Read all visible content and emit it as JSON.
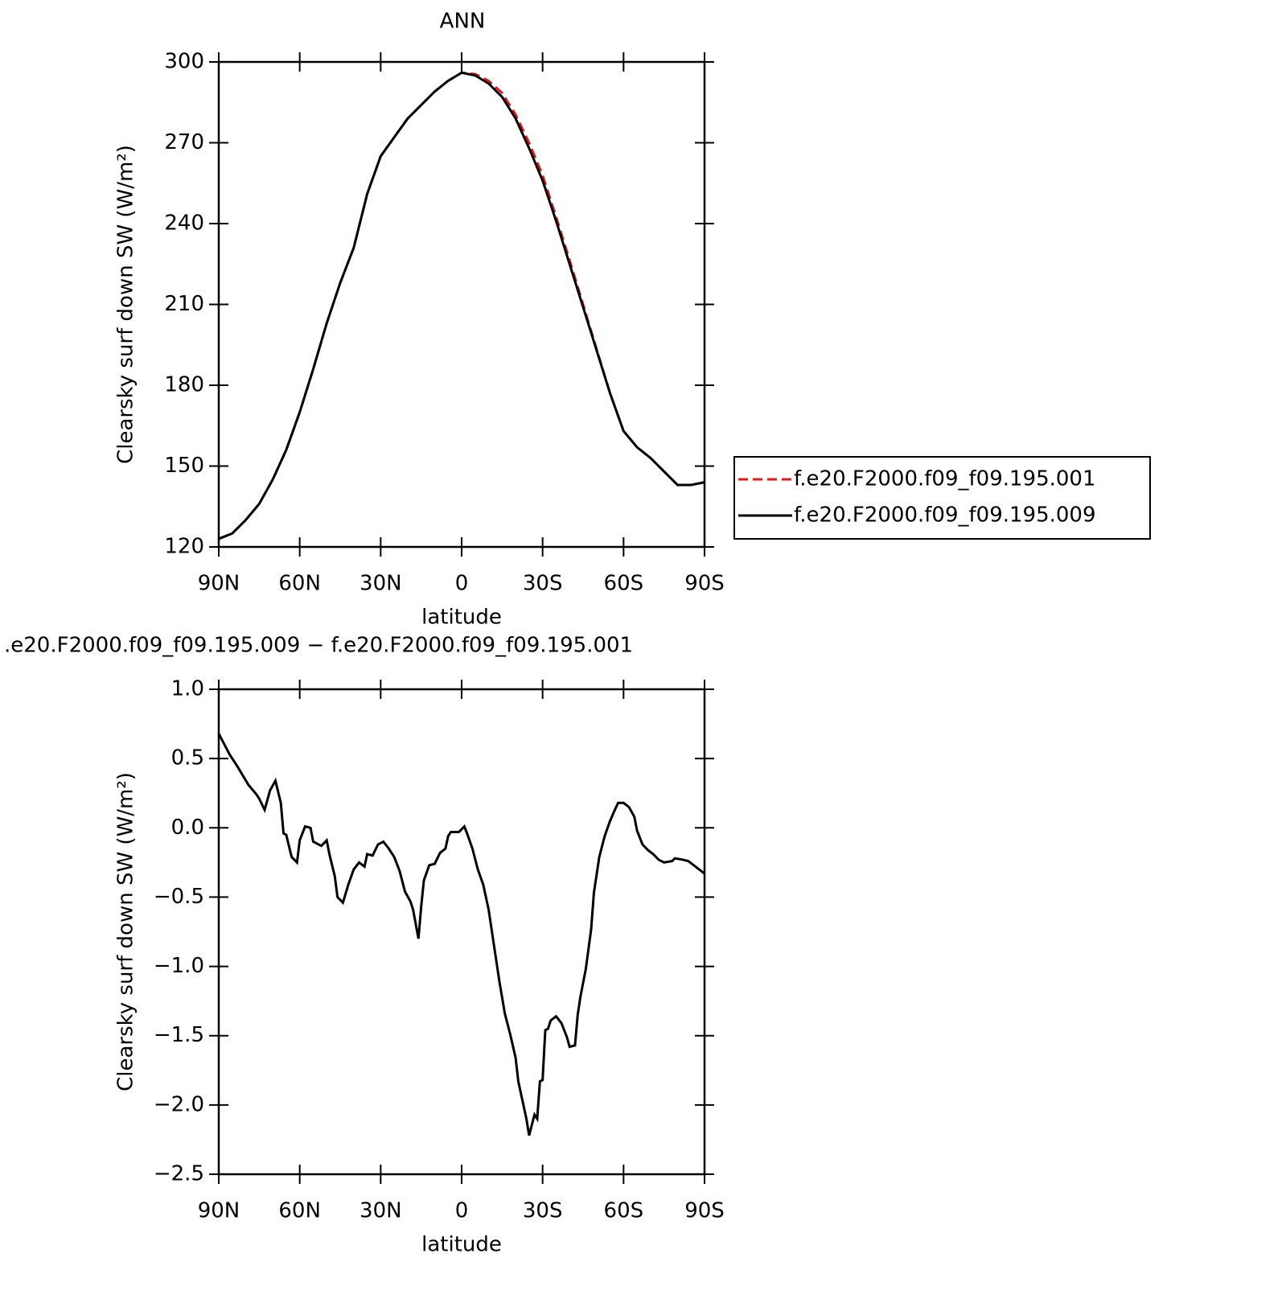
{
  "chart_data": [
    {
      "type": "line",
      "title": "ANN",
      "xlabel": "latitude",
      "ylabel": "Clearsky surf down SW (W/m²)",
      "x": [
        90,
        85,
        80,
        75,
        70,
        65,
        60,
        55,
        50,
        45,
        40,
        35,
        30,
        25,
        20,
        15,
        10,
        5,
        0,
        -5,
        -10,
        -15,
        -20,
        -25,
        -30,
        -35,
        -40,
        -45,
        -50,
        -55,
        -60,
        -65,
        -70,
        -75,
        -80,
        -85,
        -90
      ],
      "series": [
        {
          "name": "f.e20.F2000.f09_f09.195.001",
          "color": "#e41a1c",
          "dash": "dashed",
          "values": [
            123,
            125,
            130,
            136,
            145,
            156,
            170,
            186,
            203,
            218,
            231,
            251,
            265,
            272,
            279,
            284,
            289,
            293,
            296,
            295.5,
            293,
            288.5,
            280.5,
            270,
            258,
            242.5,
            226.5,
            210,
            193.5,
            177,
            163,
            157,
            153,
            148,
            143,
            143,
            144
          ]
        },
        {
          "name": "f.e20.F2000.f09_f09.195.009",
          "color": "#000000",
          "dash": "solid",
          "values": [
            123,
            125,
            130,
            136,
            145,
            156,
            170,
            186,
            203,
            218,
            231,
            251,
            265,
            272,
            279,
            284,
            289,
            293,
            296,
            295,
            292,
            287,
            279,
            268,
            256,
            241,
            225,
            209,
            193,
            177,
            163,
            157,
            153,
            148,
            143,
            143,
            144
          ]
        }
      ],
      "xlim": [
        90,
        -90
      ],
      "xticks": [
        {
          "value": 90,
          "label": "90N"
        },
        {
          "value": 60,
          "label": "60N"
        },
        {
          "value": 30,
          "label": "30N"
        },
        0,
        {
          "value": -30,
          "label": "30S"
        },
        {
          "value": -60,
          "label": "60S"
        },
        {
          "value": -90,
          "label": "90S"
        }
      ],
      "ylim": [
        120,
        300
      ],
      "yticks": [
        120,
        150,
        180,
        210,
        240,
        270,
        300
      ],
      "legend": "right"
    },
    {
      "type": "line",
      "title": ".e20.F2000.f09_f09.195.009 − f.e20.F2000.f09_f09.195.001",
      "xlabel": "latitude",
      "ylabel": "Clearsky surf down SW (W/m²)",
      "x": [
        90,
        86,
        83,
        79,
        76,
        75,
        73,
        71,
        69,
        67,
        66,
        65,
        63,
        61,
        60,
        58,
        56,
        55,
        53,
        52,
        50,
        49,
        47,
        46,
        44,
        42,
        40,
        38,
        36,
        35,
        33,
        31,
        29,
        27,
        25,
        23,
        21,
        19,
        18,
        16,
        15,
        14,
        12,
        10,
        8,
        6,
        5,
        4,
        1,
        -1,
        -2,
        -4,
        -6,
        -8,
        -10,
        -12,
        -14,
        -16,
        -18,
        -20,
        -21,
        -23,
        -24,
        -25,
        -27,
        -28,
        -29,
        -30,
        -31,
        -32,
        -33,
        -35,
        -37,
        -39,
        -40,
        -42,
        -43,
        -44,
        -46,
        -48,
        -49,
        -51,
        -53,
        -55,
        -57,
        -58,
        -60,
        -62,
        -64,
        -65,
        -67,
        -69,
        -71,
        -73,
        -75,
        -78,
        -79,
        -82,
        -84,
        -86,
        -90
      ],
      "series": [
        {
          "color": "#000000",
          "values": [
            0.68,
            0.53,
            0.44,
            0.31,
            0.24,
            0.21,
            0.13,
            0.27,
            0.34,
            0.18,
            -0.04,
            -0.05,
            -0.21,
            -0.25,
            -0.09,
            0.01,
            0,
            -0.1,
            -0.12,
            -0.13,
            -0.09,
            -0.19,
            -0.35,
            -0.5,
            -0.54,
            -0.41,
            -0.3,
            -0.25,
            -0.28,
            -0.19,
            -0.2,
            -0.12,
            -0.1,
            -0.15,
            -0.21,
            -0.31,
            -0.46,
            -0.53,
            -0.59,
            -0.8,
            -0.57,
            -0.38,
            -0.27,
            -0.26,
            -0.18,
            -0.15,
            -0.06,
            -0.03,
            -0.03,
            0.01,
            -0.04,
            -0.15,
            -0.3,
            -0.41,
            -0.59,
            -0.85,
            -1.11,
            -1.34,
            -1.49,
            -1.66,
            -1.83,
            -2.01,
            -2.1,
            -2.22,
            -2.07,
            -2.1,
            -1.83,
            -1.82,
            -1.46,
            -1.45,
            -1.39,
            -1.36,
            -1.41,
            -1.51,
            -1.58,
            -1.57,
            -1.35,
            -1.22,
            -1.02,
            -0.73,
            -0.47,
            -0.21,
            -0.06,
            0.05,
            0.14,
            0.18,
            0.18,
            0.15,
            0.08,
            -0.02,
            -0.12,
            -0.16,
            -0.19,
            -0.23,
            -0.25,
            -0.24,
            -0.22,
            -0.23,
            -0.24,
            -0.27,
            -0.33
          ]
        }
      ],
      "xlim": [
        90,
        -90
      ],
      "xticks": [
        {
          "value": 90,
          "label": "90N"
        },
        {
          "value": 60,
          "label": "60N"
        },
        {
          "value": 30,
          "label": "30N"
        },
        0,
        {
          "value": -30,
          "label": "30S"
        },
        {
          "value": -60,
          "label": "60S"
        },
        {
          "value": -90,
          "label": "90S"
        }
      ],
      "ylim": [
        -2.5,
        1
      ],
      "yticks": [
        {
          "value": -2.5,
          "label": "−2.5"
        },
        {
          "value": -2,
          "label": "−2.0"
        },
        {
          "value": -1.5,
          "label": "−1.5"
        },
        {
          "value": -1,
          "label": "−1.0"
        },
        {
          "value": -0.5,
          "label": "−0.5"
        },
        {
          "value": 0,
          "label": "0.0"
        },
        {
          "value": 0.5,
          "label": "0.5"
        },
        {
          "value": 1,
          "label": "1.0"
        }
      ]
    }
  ]
}
